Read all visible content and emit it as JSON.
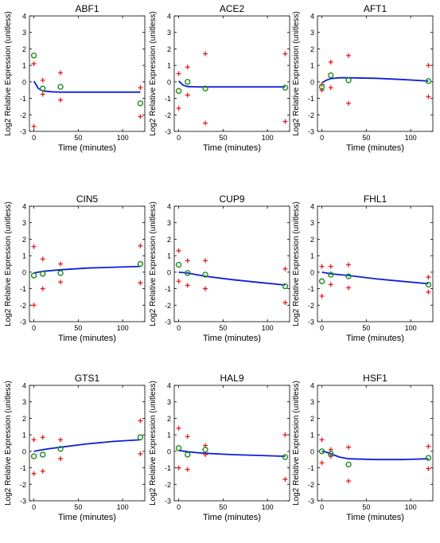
{
  "figure": {
    "xlabel": "Time (minutes)",
    "ylabel": "Log2 Relative Expression (unitless)"
  },
  "colors": {
    "model_line": "#0b1fd6",
    "data_circle": "#1f8a1f",
    "replicate_marker": "#e81c1c",
    "axis": "#000000"
  },
  "chart_data": [
    {
      "type": "line",
      "title": "ABF1",
      "xlim": [
        -5,
        125
      ],
      "ylim": [
        -3,
        4
      ],
      "xticks": [
        0,
        50,
        100
      ],
      "yticks": [
        -3,
        -2,
        -1,
        0,
        1,
        2,
        3,
        4
      ],
      "model": {
        "x": [
          0,
          5,
          10,
          20,
          30,
          60,
          90,
          120
        ],
        "y": [
          0.05,
          -0.4,
          -0.55,
          -0.6,
          -0.62,
          -0.62,
          -0.62,
          -0.62
        ]
      },
      "means": {
        "x": [
          0,
          10,
          30,
          120
        ],
        "y": [
          1.6,
          -0.4,
          -0.3,
          -1.3
        ]
      },
      "replicates": {
        "x": [
          0,
          0,
          10,
          10,
          30,
          30,
          120,
          120
        ],
        "y": [
          -2.7,
          1.1,
          0.1,
          -0.75,
          0.55,
          -1.1,
          -0.35,
          -2.1
        ]
      }
    },
    {
      "type": "line",
      "title": "ACE2",
      "xlim": [
        -5,
        125
      ],
      "ylim": [
        -3,
        4
      ],
      "xticks": [
        0,
        50,
        100
      ],
      "yticks": [
        -3,
        -2,
        -1,
        0,
        1,
        2,
        3,
        4
      ],
      "model": {
        "x": [
          0,
          5,
          10,
          20,
          30,
          60,
          90,
          120
        ],
        "y": [
          0.05,
          -0.2,
          -0.28,
          -0.3,
          -0.3,
          -0.3,
          -0.3,
          -0.3
        ]
      },
      "means": {
        "x": [
          0,
          10,
          30,
          120
        ],
        "y": [
          -0.55,
          0.0,
          -0.4,
          -0.35
        ]
      },
      "replicates": {
        "x": [
          0,
          0,
          10,
          10,
          30,
          30,
          120,
          120
        ],
        "y": [
          0.5,
          -1.6,
          0.9,
          -0.8,
          1.7,
          -2.5,
          1.7,
          -2.4
        ]
      }
    },
    {
      "type": "line",
      "title": "AFT1",
      "xlim": [
        -5,
        125
      ],
      "ylim": [
        -3,
        4
      ],
      "xticks": [
        0,
        50,
        100
      ],
      "yticks": [
        -3,
        -2,
        -1,
        0,
        1,
        2,
        3,
        4
      ],
      "model": {
        "x": [
          0,
          5,
          10,
          20,
          30,
          60,
          90,
          120
        ],
        "y": [
          -0.05,
          0.1,
          0.2,
          0.25,
          0.25,
          0.22,
          0.15,
          0.05
        ]
      },
      "means": {
        "x": [
          0,
          10,
          30,
          120
        ],
        "y": [
          -0.3,
          0.4,
          0.1,
          0.05
        ]
      },
      "replicates": {
        "x": [
          0,
          0,
          10,
          10,
          30,
          30,
          120,
          120
        ],
        "y": [
          -0.15,
          -0.5,
          1.2,
          -0.35,
          1.6,
          -1.3,
          1.0,
          -0.9
        ]
      }
    },
    {
      "type": "line",
      "title": "CIN5",
      "xlim": [
        -5,
        125
      ],
      "ylim": [
        -3,
        4
      ],
      "xticks": [
        0,
        50,
        100
      ],
      "yticks": [
        -3,
        -2,
        -1,
        0,
        1,
        2,
        3,
        4
      ],
      "model": {
        "x": [
          0,
          10,
          20,
          30,
          60,
          90,
          120
        ],
        "y": [
          -0.05,
          0.05,
          0.1,
          0.15,
          0.25,
          0.3,
          0.35
        ]
      },
      "means": {
        "x": [
          0,
          10,
          30,
          120
        ],
        "y": [
          -0.2,
          -0.1,
          -0.05,
          0.5
        ]
      },
      "replicates": {
        "x": [
          0,
          0,
          10,
          10,
          30,
          30,
          120,
          120
        ],
        "y": [
          1.55,
          -2.0,
          0.8,
          -1.0,
          0.5,
          -0.6,
          1.6,
          -0.65
        ]
      }
    },
    {
      "type": "line",
      "title": "CUP9",
      "xlim": [
        -5,
        125
      ],
      "ylim": [
        -3,
        4
      ],
      "xticks": [
        0,
        50,
        100
      ],
      "yticks": [
        -3,
        -2,
        -1,
        0,
        1,
        2,
        3,
        4
      ],
      "model": {
        "x": [
          0,
          10,
          20,
          30,
          60,
          90,
          120
        ],
        "y": [
          0.0,
          -0.05,
          -0.15,
          -0.25,
          -0.45,
          -0.62,
          -0.78
        ]
      },
      "means": {
        "x": [
          0,
          10,
          30,
          120
        ],
        "y": [
          0.45,
          -0.05,
          -0.15,
          -0.85
        ]
      },
      "replicates": {
        "x": [
          0,
          0,
          10,
          10,
          30,
          30,
          120,
          120
        ],
        "y": [
          1.3,
          -0.55,
          0.7,
          -0.8,
          0.7,
          -1.0,
          0.2,
          -1.85
        ]
      }
    },
    {
      "type": "line",
      "title": "FHL1",
      "xlim": [
        -5,
        125
      ],
      "ylim": [
        -3,
        4
      ],
      "xticks": [
        0,
        50,
        100
      ],
      "yticks": [
        -3,
        -2,
        -1,
        0,
        1,
        2,
        3,
        4
      ],
      "model": {
        "x": [
          0,
          10,
          20,
          30,
          60,
          90,
          120
        ],
        "y": [
          0.0,
          -0.1,
          -0.15,
          -0.2,
          -0.4,
          -0.55,
          -0.7
        ]
      },
      "means": {
        "x": [
          0,
          10,
          30,
          120
        ],
        "y": [
          -0.55,
          -0.15,
          -0.25,
          -0.75
        ]
      },
      "replicates": {
        "x": [
          0,
          0,
          10,
          10,
          30,
          30,
          120,
          120
        ],
        "y": [
          0.35,
          -1.45,
          0.35,
          -0.75,
          0.45,
          -0.95,
          -0.3,
          -1.2
        ]
      }
    },
    {
      "type": "line",
      "title": "GTS1",
      "xlim": [
        -5,
        125
      ],
      "ylim": [
        -3,
        4
      ],
      "xticks": [
        0,
        50,
        100
      ],
      "yticks": [
        -3,
        -2,
        -1,
        0,
        1,
        2,
        3,
        4
      ],
      "model": {
        "x": [
          0,
          10,
          20,
          30,
          60,
          90,
          120
        ],
        "y": [
          0.0,
          0.1,
          0.18,
          0.25,
          0.45,
          0.6,
          0.7
        ]
      },
      "means": {
        "x": [
          0,
          10,
          30,
          120
        ],
        "y": [
          -0.3,
          -0.2,
          0.15,
          0.85
        ]
      },
      "replicates": {
        "x": [
          0,
          0,
          10,
          10,
          30,
          30,
          120,
          120
        ],
        "y": [
          0.7,
          -1.35,
          0.85,
          -1.2,
          0.7,
          -0.45,
          1.85,
          -0.15
        ]
      }
    },
    {
      "type": "line",
      "title": "HAL9",
      "xlim": [
        -5,
        125
      ],
      "ylim": [
        -3,
        4
      ],
      "xticks": [
        0,
        50,
        100
      ],
      "yticks": [
        -3,
        -2,
        -1,
        0,
        1,
        2,
        3,
        4
      ],
      "model": {
        "x": [
          0,
          10,
          20,
          30,
          60,
          90,
          120
        ],
        "y": [
          0.05,
          -0.02,
          -0.08,
          -0.12,
          -0.2,
          -0.25,
          -0.3
        ]
      },
      "means": {
        "x": [
          0,
          10,
          30,
          120
        ],
        "y": [
          0.2,
          -0.2,
          0.1,
          -0.35
        ]
      },
      "replicates": {
        "x": [
          0,
          0,
          10,
          10,
          30,
          30,
          120,
          120
        ],
        "y": [
          1.4,
          -1.0,
          0.9,
          -1.1,
          0.35,
          -0.2,
          1.0,
          -1.7
        ]
      }
    },
    {
      "type": "line",
      "title": "HSF1",
      "xlim": [
        -5,
        125
      ],
      "ylim": [
        -3,
        4
      ],
      "xticks": [
        0,
        50,
        100
      ],
      "yticks": [
        -3,
        -2,
        -1,
        0,
        1,
        2,
        3,
        4
      ],
      "model": {
        "x": [
          0,
          5,
          10,
          20,
          30,
          60,
          90,
          120
        ],
        "y": [
          0.0,
          -0.05,
          -0.15,
          -0.35,
          -0.45,
          -0.5,
          -0.5,
          -0.45
        ]
      },
      "means": {
        "x": [
          0,
          10,
          30,
          120
        ],
        "y": [
          0.0,
          -0.15,
          -0.8,
          -0.4
        ]
      },
      "replicates": {
        "x": [
          0,
          0,
          10,
          10,
          30,
          30,
          120,
          120
        ],
        "y": [
          0.7,
          -0.7,
          0.1,
          -0.3,
          0.25,
          -1.8,
          0.3,
          -1.05
        ]
      }
    }
  ]
}
